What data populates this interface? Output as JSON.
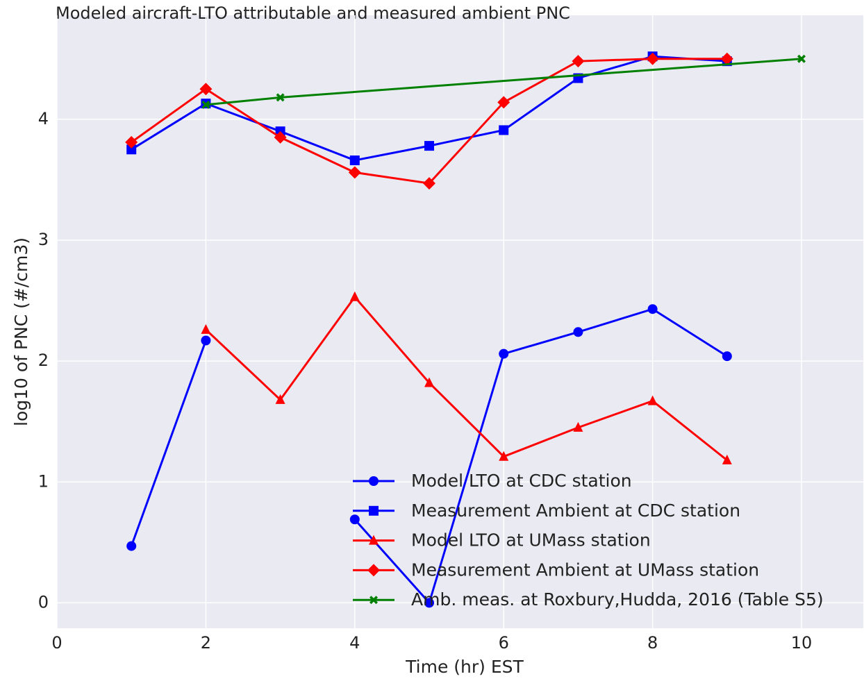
{
  "chart_data": {
    "type": "line",
    "title": "Modeled aircraft-LTO attributable and measured ambient PNC",
    "xlabel": "Time (hr) EST",
    "ylabel": "log10 of PNC (#/cm3)",
    "xlim": [
      0,
      10.83
    ],
    "xticks": [
      0,
      2,
      4,
      6,
      8,
      10
    ],
    "ylim": [
      -0.21,
      4.86
    ],
    "yticks": [
      0,
      1,
      2,
      3,
      4
    ],
    "grid": true,
    "legend": "lower right",
    "series": [
      {
        "name": "Model LTO at CDC station",
        "color": "#0000ff",
        "marker": "o",
        "x": [
          1,
          2,
          3,
          4,
          5,
          6,
          7,
          8,
          9
        ],
        "values": [
          0.47,
          2.17,
          null,
          0.69,
          0,
          2.06,
          2.24,
          2.43,
          2.04
        ]
      },
      {
        "name": "Measurement Ambient at CDC station",
        "color": "#0000ff",
        "marker": "s",
        "x": [
          1,
          2,
          3,
          4,
          5,
          6,
          7,
          8,
          9
        ],
        "values": [
          3.75,
          4.13,
          3.9,
          3.66,
          3.78,
          3.91,
          4.34,
          4.52,
          4.48
        ]
      },
      {
        "name": "Model LTO at UMass station",
        "color": "#ff0000",
        "marker": "^",
        "x": [
          1,
          2,
          3,
          4,
          5,
          6,
          7,
          8,
          9
        ],
        "values": [
          null,
          2.26,
          1.68,
          2.53,
          1.82,
          1.21,
          1.45,
          1.67,
          1.18
        ]
      },
      {
        "name": "Measurement Ambient at UMass station",
        "color": "#ff0000",
        "marker": "D",
        "x": [
          1,
          2,
          3,
          4,
          5,
          6,
          7,
          8,
          9
        ],
        "values": [
          3.81,
          4.25,
          3.85,
          3.56,
          3.47,
          4.14,
          4.48,
          4.5,
          4.5
        ]
      },
      {
        "name": "Amb. meas. at Roxbury,Hudda, 2016 (Table S5)",
        "color": "#008000",
        "marker": "X",
        "x": [
          2,
          3,
          10
        ],
        "values": [
          4.12,
          4.18,
          4.5
        ]
      }
    ]
  }
}
